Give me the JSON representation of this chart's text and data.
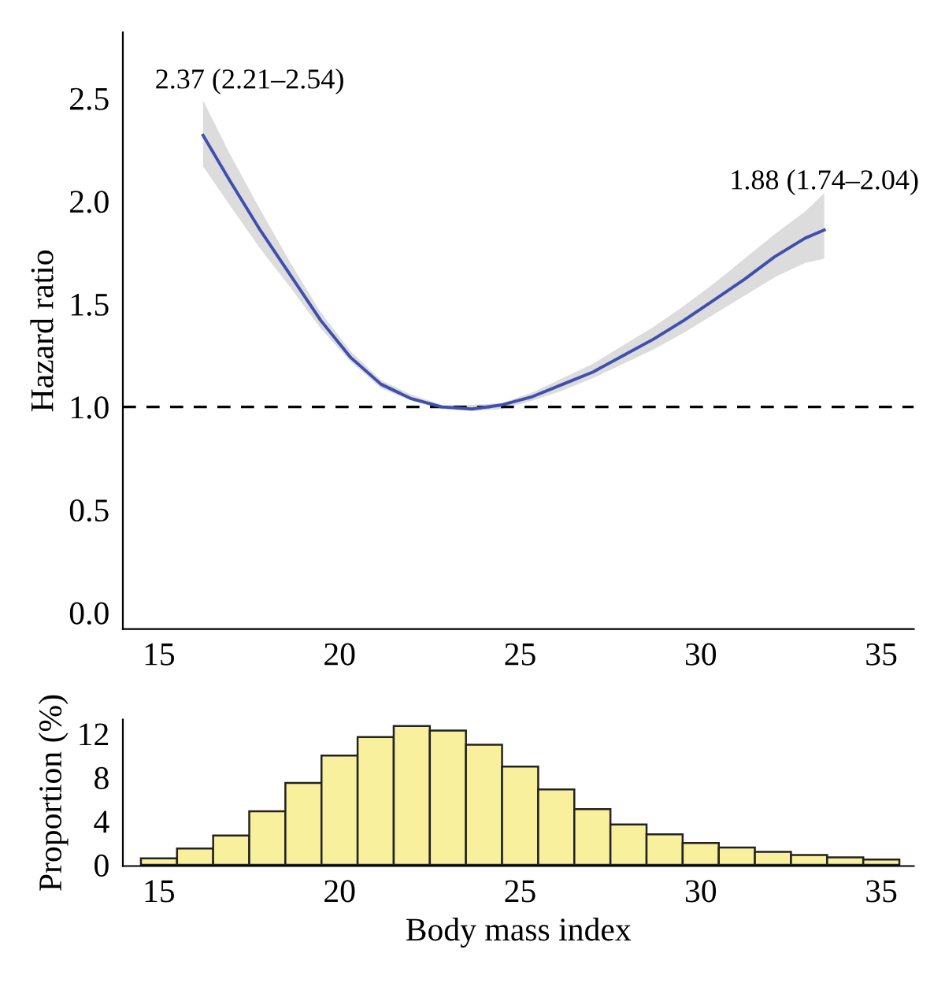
{
  "chart_data": [
    {
      "type": "line",
      "ylabel": "Hazard ratio",
      "xlim": [
        14,
        35.9
      ],
      "xticks": [
        15,
        20,
        25,
        30,
        35
      ],
      "ylim": [
        -0.08,
        2.82
      ],
      "yticks": [
        {
          "value": 0,
          "label": "0.0"
        },
        0.5,
        {
          "value": 1,
          "label": "1.0"
        },
        1.5,
        {
          "value": 2,
          "label": "2.0"
        },
        2.5
      ],
      "grid": false,
      "legend": false,
      "series": [
        {
          "color": "#3f4fb0",
          "x": [
            16.22,
            16.96,
            17.8,
            18.64,
            19.48,
            20.31,
            21.15,
            21.99,
            22.83,
            23.67,
            24.51,
            25.34,
            26.18,
            27.02,
            27.86,
            28.7,
            29.53,
            30.37,
            31.21,
            32.05,
            32.89,
            33.42
          ],
          "values": [
            2.32,
            2.1,
            1.86,
            1.64,
            1.42,
            1.24,
            1.11,
            1.04,
            1.0,
            0.99,
            1.01,
            1.05,
            1.11,
            1.17,
            1.25,
            1.33,
            1.42,
            1.52,
            1.62,
            1.73,
            1.82,
            1.86
          ],
          "lower": [
            2.17,
            1.98,
            1.77,
            1.58,
            1.38,
            1.22,
            1.09,
            1.03,
            0.99,
            0.98,
            0.99,
            1.03,
            1.08,
            1.14,
            1.21,
            1.28,
            1.36,
            1.45,
            1.54,
            1.63,
            1.7,
            1.72
          ],
          "upper": [
            2.49,
            2.23,
            1.96,
            1.7,
            1.46,
            1.27,
            1.13,
            1.06,
            1.01,
            1.01,
            1.02,
            1.07,
            1.14,
            1.21,
            1.3,
            1.39,
            1.49,
            1.6,
            1.72,
            1.84,
            1.95,
            2.04
          ]
        }
      ],
      "ref_lines": [
        {
          "axis": "y",
          "value": 1.0,
          "color": "#000000",
          "line_style": "dashed"
        }
      ],
      "annotations": [
        {
          "text": "2.37 (2.21–2.54)",
          "x": 16.22,
          "y": 2.37
        },
        {
          "text": "1.88 (1.74–2.04)",
          "x": 33.42,
          "y": 1.88
        }
      ]
    },
    {
      "type": "histogram",
      "xlabel": "Body mass index",
      "ylabel": "Proportion (%)",
      "xlim": [
        14,
        35.9
      ],
      "xticks": [
        15,
        20,
        25,
        30,
        35
      ],
      "ylim": [
        -0.1,
        13.3
      ],
      "yticks": [
        0,
        4,
        8,
        12
      ],
      "grid": false,
      "legend": false,
      "color": "#f8f09c",
      "bins": [
        14.5,
        15.5,
        16.5,
        17.5,
        18.5,
        19.5,
        20.5,
        21.5,
        22.5,
        23.5,
        24.5,
        25.5,
        26.5,
        27.5,
        28.5,
        29.5,
        30.5,
        31.5,
        32.5,
        33.5,
        34.5,
        35.5
      ],
      "values": [
        0.6,
        1.5,
        2.7,
        4.9,
        7.5,
        10.0,
        11.7,
        12.7,
        12.3,
        11.0,
        9.0,
        6.9,
        5.1,
        3.7,
        2.8,
        2.0,
        1.6,
        1.2,
        0.9,
        0.7,
        0.5
      ]
    }
  ]
}
